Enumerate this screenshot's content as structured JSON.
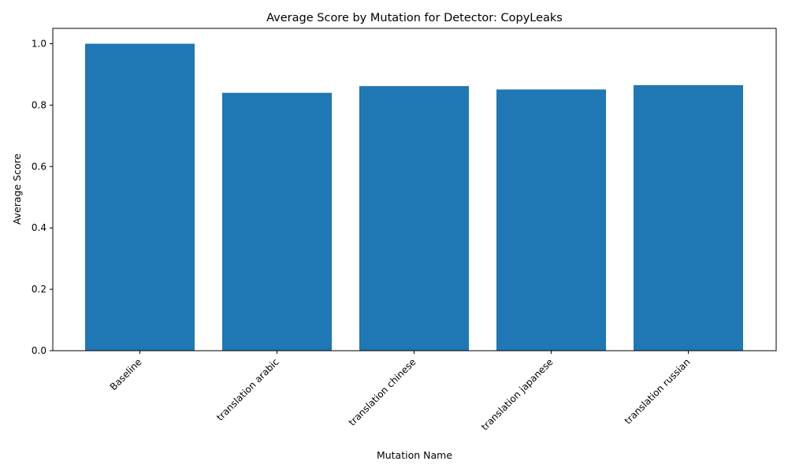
{
  "chart_data": {
    "type": "bar",
    "title": "Average Score by Mutation for Detector: CopyLeaks",
    "xlabel": "Mutation Name",
    "ylabel": "Average Score",
    "categories": [
      "Baseline",
      "translation arabic",
      "translation chinese",
      "translation japanese",
      "translation russian"
    ],
    "values": [
      1.0,
      0.84,
      0.862,
      0.851,
      0.865
    ],
    "ylim": [
      0,
      1.05
    ],
    "yticks": [
      "0.0",
      "0.2",
      "0.4",
      "0.6",
      "0.8",
      "1.0"
    ],
    "grid": false,
    "bar_color": "#1f77b4"
  }
}
